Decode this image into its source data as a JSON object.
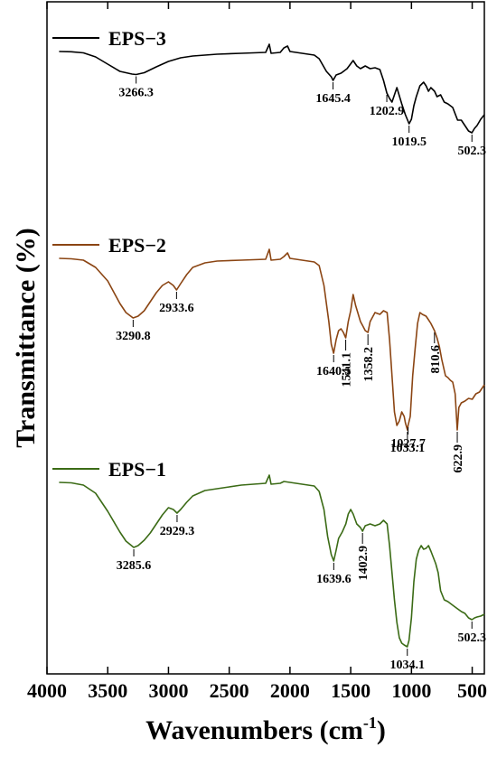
{
  "chart_data": {
    "type": "line",
    "xlabel": "Wavenumbers (cm",
    "xlabel_sup": "-1",
    "xlabel_close": ")",
    "ylabel": "Transmittance (%)",
    "xlim": [
      4000,
      400
    ],
    "x_ticks": [
      "4000",
      "3500",
      "3000",
      "2500",
      "2000",
      "1500",
      "1000",
      "500"
    ],
    "x_tick_values": [
      4000,
      3500,
      3000,
      2500,
      2000,
      1500,
      1000,
      500
    ],
    "series": [
      {
        "name": "EPS−3",
        "color": "#000000",
        "points": [
          [
            3900,
            0
          ],
          [
            3800,
            -0.3
          ],
          [
            3700,
            -1.5
          ],
          [
            3600,
            -6
          ],
          [
            3500,
            -14
          ],
          [
            3400,
            -22
          ],
          [
            3300,
            -25
          ],
          [
            3266.3,
            -25.5
          ],
          [
            3200,
            -23.5
          ],
          [
            3100,
            -17
          ],
          [
            3000,
            -11
          ],
          [
            2900,
            -7
          ],
          [
            2800,
            -5
          ],
          [
            2600,
            -3
          ],
          [
            2400,
            -2
          ],
          [
            2200,
            -1
          ],
          [
            2170,
            8
          ],
          [
            2155,
            -2
          ],
          [
            2080,
            -1
          ],
          [
            2050,
            4
          ],
          [
            2020,
            6
          ],
          [
            2000,
            0
          ],
          [
            1900,
            -2
          ],
          [
            1800,
            -4
          ],
          [
            1760,
            -8
          ],
          [
            1700,
            -22
          ],
          [
            1660,
            -28
          ],
          [
            1645.4,
            -32
          ],
          [
            1620,
            -26
          ],
          [
            1580,
            -24
          ],
          [
            1530,
            -19
          ],
          [
            1480,
            -10
          ],
          [
            1450,
            -16
          ],
          [
            1420,
            -19
          ],
          [
            1380,
            -16
          ],
          [
            1340,
            -19
          ],
          [
            1300,
            -18
          ],
          [
            1260,
            -20
          ],
          [
            1230,
            -32
          ],
          [
            1202.9,
            -46
          ],
          [
            1180,
            -52
          ],
          [
            1160,
            -56
          ],
          [
            1140,
            -48
          ],
          [
            1120,
            -40
          ],
          [
            1080,
            -58
          ],
          [
            1050,
            -70
          ],
          [
            1019.5,
            -80
          ],
          [
            1000,
            -75
          ],
          [
            980,
            -60
          ],
          [
            960,
            -50
          ],
          [
            930,
            -38
          ],
          [
            900,
            -34
          ],
          [
            880,
            -38
          ],
          [
            860,
            -44
          ],
          [
            840,
            -40
          ],
          [
            810,
            -44
          ],
          [
            790,
            -50
          ],
          [
            760,
            -48
          ],
          [
            730,
            -56
          ],
          [
            700,
            -58
          ],
          [
            660,
            -62
          ],
          [
            620,
            -76
          ],
          [
            590,
            -76
          ],
          [
            560,
            -82
          ],
          [
            530,
            -88
          ],
          [
            502.3,
            -90
          ],
          [
            480,
            -85
          ],
          [
            460,
            -82
          ],
          [
            430,
            -75
          ],
          [
            400,
            -70
          ]
        ]
      },
      {
        "name": "EPS−2",
        "color": "#8b4513",
        "points": [
          [
            3900,
            0
          ],
          [
            3800,
            -0.5
          ],
          [
            3700,
            -2
          ],
          [
            3600,
            -10
          ],
          [
            3500,
            -25
          ],
          [
            3400,
            -50
          ],
          [
            3350,
            -60
          ],
          [
            3290.8,
            -66
          ],
          [
            3250,
            -64
          ],
          [
            3200,
            -58
          ],
          [
            3150,
            -48
          ],
          [
            3100,
            -38
          ],
          [
            3050,
            -30
          ],
          [
            3000,
            -26
          ],
          [
            2960,
            -30
          ],
          [
            2933.6,
            -35
          ],
          [
            2900,
            -28
          ],
          [
            2850,
            -18
          ],
          [
            2800,
            -10
          ],
          [
            2700,
            -5
          ],
          [
            2600,
            -3
          ],
          [
            2400,
            -2
          ],
          [
            2200,
            -1
          ],
          [
            2170,
            10
          ],
          [
            2155,
            -2
          ],
          [
            2080,
            -1
          ],
          [
            2050,
            2
          ],
          [
            2020,
            6
          ],
          [
            2000,
            0
          ],
          [
            1900,
            -2
          ],
          [
            1800,
            -4
          ],
          [
            1760,
            -8
          ],
          [
            1720,
            -30
          ],
          [
            1680,
            -70
          ],
          [
            1660,
            -95
          ],
          [
            1640.5,
            -105
          ],
          [
            1620,
            -90
          ],
          [
            1600,
            -80
          ],
          [
            1580,
            -78
          ],
          [
            1560,
            -82
          ],
          [
            1541.1,
            -88
          ],
          [
            1520,
            -70
          ],
          [
            1500,
            -58
          ],
          [
            1480,
            -40
          ],
          [
            1460,
            -52
          ],
          [
            1420,
            -70
          ],
          [
            1400,
            -75
          ],
          [
            1380,
            -80
          ],
          [
            1358.2,
            -82
          ],
          [
            1340,
            -70
          ],
          [
            1300,
            -60
          ],
          [
            1260,
            -62
          ],
          [
            1230,
            -58
          ],
          [
            1200,
            -60
          ],
          [
            1180,
            -90
          ],
          [
            1160,
            -130
          ],
          [
            1140,
            -170
          ],
          [
            1120,
            -185
          ],
          [
            1100,
            -180
          ],
          [
            1080,
            -170
          ],
          [
            1060,
            -175
          ],
          [
            1050,
            -182
          ],
          [
            1033.1,
            -190
          ],
          [
            1027.7,
            -185
          ],
          [
            1010,
            -175
          ],
          [
            990,
            -130
          ],
          [
            970,
            -100
          ],
          [
            950,
            -72
          ],
          [
            930,
            -60
          ],
          [
            910,
            -62
          ],
          [
            880,
            -64
          ],
          [
            860,
            -68
          ],
          [
            840,
            -72
          ],
          [
            810.6,
            -80
          ],
          [
            790,
            -88
          ],
          [
            770,
            -98
          ],
          [
            750,
            -112
          ],
          [
            720,
            -130
          ],
          [
            700,
            -132
          ],
          [
            680,
            -135
          ],
          [
            660,
            -137
          ],
          [
            640,
            -150
          ],
          [
            622.9,
            -190
          ],
          [
            610,
            -165
          ],
          [
            590,
            -160
          ],
          [
            560,
            -158
          ],
          [
            530,
            -155
          ],
          [
            500,
            -156
          ],
          [
            470,
            -150
          ],
          [
            440,
            -148
          ],
          [
            400,
            -140
          ]
        ]
      },
      {
        "name": "EPS−1",
        "color": "#3b6b16",
        "points": [
          [
            3900,
            0
          ],
          [
            3800,
            -0.5
          ],
          [
            3700,
            -3
          ],
          [
            3600,
            -12
          ],
          [
            3500,
            -32
          ],
          [
            3400,
            -55
          ],
          [
            3350,
            -65
          ],
          [
            3285.6,
            -72
          ],
          [
            3250,
            -70
          ],
          [
            3200,
            -64
          ],
          [
            3150,
            -56
          ],
          [
            3100,
            -46
          ],
          [
            3050,
            -36
          ],
          [
            3000,
            -28
          ],
          [
            2960,
            -30
          ],
          [
            2929.3,
            -34
          ],
          [
            2900,
            -30
          ],
          [
            2850,
            -22
          ],
          [
            2800,
            -15
          ],
          [
            2700,
            -9
          ],
          [
            2600,
            -7
          ],
          [
            2500,
            -5
          ],
          [
            2400,
            -3
          ],
          [
            2200,
            -1
          ],
          [
            2170,
            8
          ],
          [
            2155,
            -2
          ],
          [
            2080,
            -1
          ],
          [
            2050,
            1
          ],
          [
            2000,
            0
          ],
          [
            1900,
            -2
          ],
          [
            1800,
            -4
          ],
          [
            1760,
            -10
          ],
          [
            1720,
            -30
          ],
          [
            1690,
            -60
          ],
          [
            1660,
            -80
          ],
          [
            1639.6,
            -87
          ],
          [
            1620,
            -75
          ],
          [
            1600,
            -62
          ],
          [
            1570,
            -55
          ],
          [
            1540,
            -46
          ],
          [
            1520,
            -35
          ],
          [
            1500,
            -30
          ],
          [
            1480,
            -35
          ],
          [
            1450,
            -46
          ],
          [
            1420,
            -50
          ],
          [
            1402.9,
            -54
          ],
          [
            1380,
            -48
          ],
          [
            1340,
            -46
          ],
          [
            1300,
            -48
          ],
          [
            1260,
            -46
          ],
          [
            1230,
            -42
          ],
          [
            1200,
            -46
          ],
          [
            1180,
            -70
          ],
          [
            1160,
            -100
          ],
          [
            1140,
            -130
          ],
          [
            1120,
            -155
          ],
          [
            1100,
            -172
          ],
          [
            1080,
            -178
          ],
          [
            1060,
            -180
          ],
          [
            1034.1,
            -182
          ],
          [
            1020,
            -175
          ],
          [
            1000,
            -150
          ],
          [
            980,
            -110
          ],
          [
            960,
            -85
          ],
          [
            940,
            -75
          ],
          [
            920,
            -70
          ],
          [
            900,
            -74
          ],
          [
            880,
            -73
          ],
          [
            860,
            -70
          ],
          [
            840,
            -76
          ],
          [
            820,
            -83
          ],
          [
            800,
            -90
          ],
          [
            780,
            -100
          ],
          [
            760,
            -120
          ],
          [
            730,
            -130
          ],
          [
            700,
            -132
          ],
          [
            660,
            -136
          ],
          [
            620,
            -140
          ],
          [
            590,
            -143
          ],
          [
            560,
            -145
          ],
          [
            530,
            -150
          ],
          [
            502.3,
            -152
          ],
          [
            480,
            -150
          ],
          [
            460,
            -149
          ],
          [
            430,
            -148
          ],
          [
            400,
            -146
          ]
        ]
      }
    ],
    "peaks": [
      {
        "series": 0,
        "label": "3266.3",
        "x": 3266.3
      },
      {
        "series": 0,
        "label": "1645.4",
        "x": 1645.4
      },
      {
        "series": 0,
        "label": "1202.9",
        "x": 1202.9
      },
      {
        "series": 0,
        "label": "1019.5",
        "x": 1019.5
      },
      {
        "series": 0,
        "label": "502.3",
        "x": 502.3
      },
      {
        "series": 1,
        "label": "3290.8",
        "x": 3290.8
      },
      {
        "series": 1,
        "label": "2933.6",
        "x": 2933.6
      },
      {
        "series": 1,
        "label": "1640.5",
        "x": 1640.5
      },
      {
        "series": 1,
        "label": "1541.1",
        "x": 1541.1
      },
      {
        "series": 1,
        "label": "1358.2",
        "x": 1358.2
      },
      {
        "series": 1,
        "label": "1033.1",
        "x": 1033.1
      },
      {
        "series": 1,
        "label": "1027.7",
        "x": 1027.7
      },
      {
        "series": 1,
        "label": "810.6",
        "x": 810.6
      },
      {
        "series": 1,
        "label": "622.9",
        "x": 622.9
      },
      {
        "series": 2,
        "label": "3285.6",
        "x": 3285.6
      },
      {
        "series": 2,
        "label": "2929.3",
        "x": 2929.3
      },
      {
        "series": 2,
        "label": "1639.6",
        "x": 1639.6
      },
      {
        "series": 2,
        "label": "1402.9",
        "x": 1402.9
      },
      {
        "series": 2,
        "label": "1034.1",
        "x": 1034.1
      },
      {
        "series": 2,
        "label": "502.3",
        "x": 502.3
      }
    ]
  }
}
